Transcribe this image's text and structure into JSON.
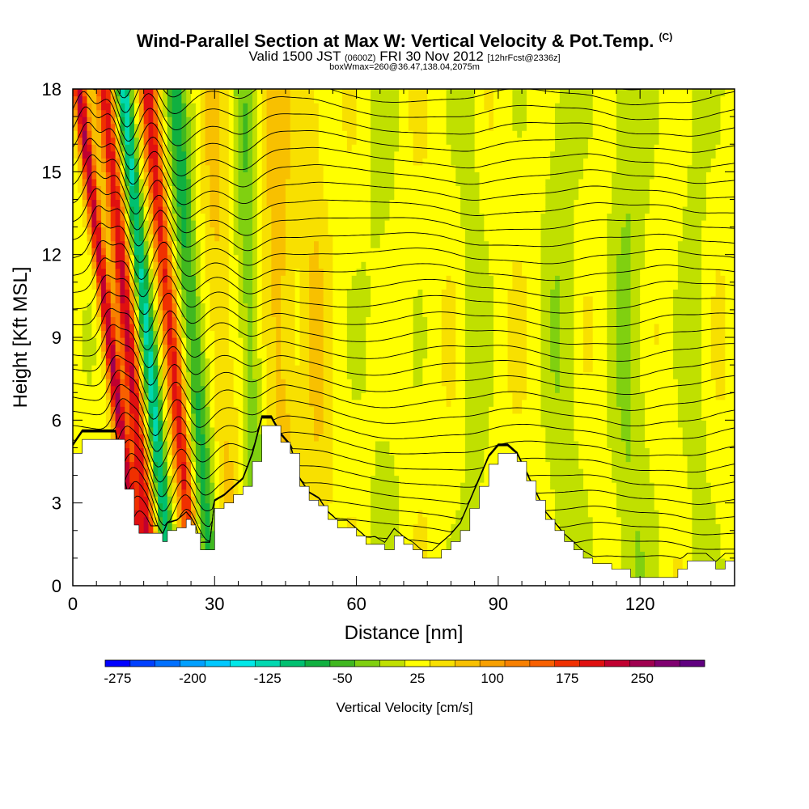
{
  "header": {
    "title": "Wind-Parallel Section at Max W: Vertical Velocity & Pot.Temp.",
    "title_mark": "(C)",
    "valid_prefix": "Valid 1500 JST",
    "valid_zulu": "(0600Z)",
    "valid_date": "FRI 30 Nov 2012",
    "forecast_note": "[12hrFcst@2336z]",
    "subtitle2": "boxWmax=260@36.47,138.04,2075m"
  },
  "chart_data": {
    "type": "heatmap",
    "xlabel": "Distance [nm]",
    "ylabel": "Height [Kft MSL]",
    "xlim": [
      0,
      140
    ],
    "ylim": [
      0,
      18
    ],
    "x_ticks": [
      0,
      30,
      60,
      90,
      120
    ],
    "y_ticks": [
      0,
      3,
      6,
      9,
      12,
      15,
      18
    ],
    "colorbar": {
      "title": "Vertical Velocity [cm/s]",
      "labels": [
        "-275",
        "-200",
        "-125",
        "-50",
        "25",
        "100",
        "175",
        "250"
      ],
      "colors": [
        "#0000ff",
        "#0040ff",
        "#0070ff",
        "#00a0ff",
        "#00c8ff",
        "#00e8e8",
        "#00d8b0",
        "#00c070",
        "#10b040",
        "#40b820",
        "#80d010",
        "#c0e000",
        "#ffff00",
        "#f8e000",
        "#f8c000",
        "#f8a000",
        "#f88000",
        "#f86000",
        "#f03000",
        "#e01010",
        "#c00030",
        "#a00050",
        "#800070",
        "#600080"
      ]
    },
    "terrain_kft": [
      [
        0,
        4.8
      ],
      [
        2,
        5.3
      ],
      [
        6,
        5.3
      ],
      [
        9,
        5.3
      ],
      [
        11,
        3.5
      ],
      [
        13,
        2.2
      ],
      [
        14,
        1.9
      ],
      [
        16,
        1.9
      ],
      [
        18,
        1.9
      ],
      [
        19,
        1.6
      ],
      [
        20,
        2.0
      ],
      [
        22,
        2.1
      ],
      [
        24,
        2.4
      ],
      [
        25,
        2.2
      ],
      [
        26,
        1.9
      ],
      [
        27,
        1.3
      ],
      [
        29,
        1.3
      ],
      [
        30,
        2.8
      ],
      [
        32,
        3.0
      ],
      [
        34,
        3.3
      ],
      [
        36,
        3.6
      ],
      [
        38,
        4.5
      ],
      [
        40,
        5.8
      ],
      [
        42,
        5.8
      ],
      [
        44,
        5.2
      ],
      [
        46,
        4.8
      ],
      [
        48,
        3.6
      ],
      [
        50,
        3.1
      ],
      [
        52,
        2.9
      ],
      [
        54,
        2.4
      ],
      [
        56,
        2.1
      ],
      [
        58,
        2.1
      ],
      [
        60,
        1.8
      ],
      [
        62,
        1.5
      ],
      [
        64,
        1.5
      ],
      [
        66,
        1.3
      ],
      [
        68,
        1.8
      ],
      [
        70,
        1.5
      ],
      [
        72,
        1.3
      ],
      [
        74,
        1.0
      ],
      [
        76,
        1.0
      ],
      [
        78,
        1.3
      ],
      [
        80,
        1.6
      ],
      [
        82,
        2.0
      ],
      [
        84,
        2.8
      ],
      [
        86,
        3.6
      ],
      [
        88,
        4.4
      ],
      [
        90,
        4.8
      ],
      [
        92,
        4.8
      ],
      [
        94,
        4.5
      ],
      [
        96,
        3.8
      ],
      [
        98,
        3.1
      ],
      [
        100,
        2.4
      ],
      [
        102,
        2.0
      ],
      [
        104,
        1.6
      ],
      [
        106,
        1.3
      ],
      [
        108,
        1.0
      ],
      [
        110,
        0.8
      ],
      [
        112,
        0.8
      ],
      [
        114,
        0.6
      ],
      [
        116,
        0.6
      ],
      [
        118,
        0.3
      ],
      [
        120,
        0.3
      ],
      [
        122,
        0.3
      ],
      [
        124,
        0.3
      ],
      [
        126,
        0.3
      ],
      [
        128,
        0.6
      ],
      [
        130,
        0.9
      ],
      [
        132,
        0.9
      ],
      [
        134,
        0.9
      ],
      [
        136,
        0.6
      ],
      [
        138,
        0.9
      ],
      [
        140,
        0.9
      ]
    ],
    "w_field": [
      {
        "x": 12,
        "tilt": -1.3,
        "w": 200,
        "width": 1.4
      },
      {
        "x": 15,
        "tilt": -1.0,
        "w": 180,
        "width": 1.8
      },
      {
        "x": 19,
        "tilt": -1.0,
        "w": -140,
        "width": 1.6
      },
      {
        "x": 24,
        "tilt": -1.0,
        "w": 170,
        "width": 1.8
      },
      {
        "x": 28,
        "tilt": -0.8,
        "w": -100,
        "width": 2.2
      },
      {
        "x": 33,
        "tilt": -0.5,
        "w": 40,
        "width": 2.5
      },
      {
        "x": 39,
        "tilt": -0.4,
        "w": -60,
        "width": 2.2
      },
      {
        "x": 45,
        "tilt": -0.3,
        "w": 50,
        "width": 3
      },
      {
        "x": 52,
        "tilt": -0.2,
        "w": 30,
        "width": 3
      },
      {
        "x": 66,
        "tilt": -0.2,
        "w": -20,
        "width": 4
      },
      {
        "x": 85,
        "tilt": -0.1,
        "w": -25,
        "width": 3
      },
      {
        "x": 104,
        "tilt": -0.2,
        "w": -30,
        "width": 4
      },
      {
        "x": 118,
        "tilt": -0.1,
        "w": -40,
        "width": 4
      },
      {
        "x": 132,
        "tilt": -0.1,
        "w": -25,
        "width": 3
      }
    ],
    "theta_levels": [
      270,
      272,
      274,
      276,
      278,
      280,
      282,
      284,
      286,
      288,
      290,
      292,
      294,
      296,
      298,
      300,
      302,
      304,
      306,
      308,
      310,
      312,
      314,
      316,
      318,
      320,
      322,
      324,
      326,
      328,
      330
    ],
    "grid": false,
    "colors": {
      "background": "#ffffff",
      "frame": "#000000",
      "contour": "#000000"
    }
  }
}
